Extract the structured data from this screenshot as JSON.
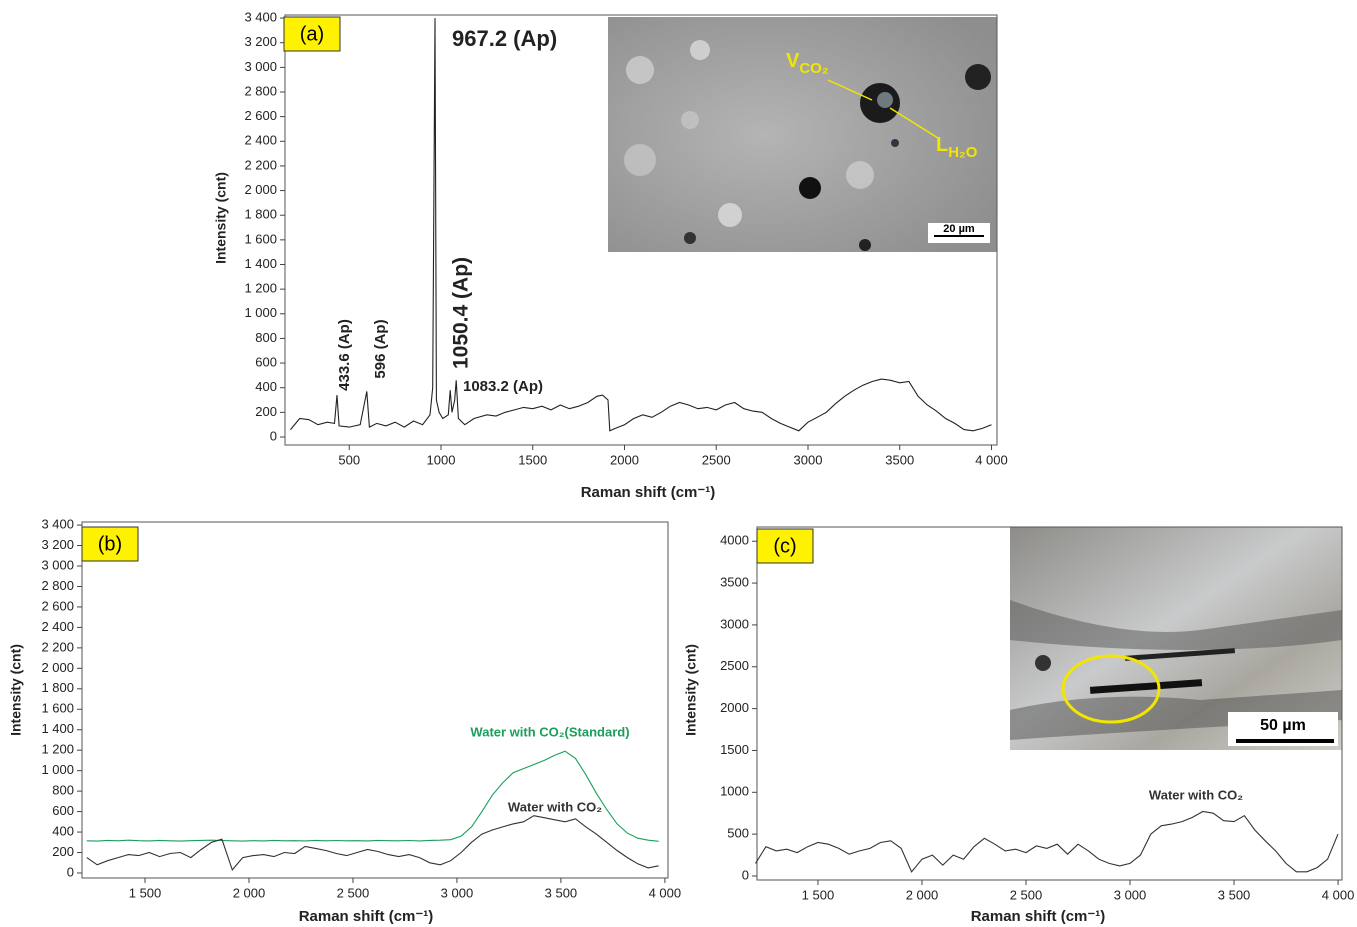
{
  "chart_data": [
    {
      "type": "line",
      "panel_label": "(a)",
      "x_label": "Raman shift (cm⁻¹)",
      "y_label": "Intensity (cnt)",
      "xlim": [
        150,
        4030
      ],
      "ylim": [
        -65,
        3425
      ],
      "xticks": [
        500,
        1000,
        1500,
        2000,
        2500,
        3000,
        3500,
        {
          "value": 4000,
          "label": "4 000"
        }
      ],
      "yticks": [
        0,
        200,
        400,
        600,
        800,
        {
          "value": 1000,
          "label": "1 000"
        },
        {
          "value": 1200,
          "label": "1 200"
        },
        {
          "value": 1400,
          "label": "1 400"
        },
        {
          "value": 1600,
          "label": "1 600"
        },
        {
          "value": 1800,
          "label": "1 800"
        },
        {
          "value": 2000,
          "label": "2 000"
        },
        {
          "value": 2200,
          "label": "2 200"
        },
        {
          "value": 2400,
          "label": "2 400"
        },
        {
          "value": 2600,
          "label": "2 600"
        },
        {
          "value": 2800,
          "label": "2 800"
        },
        {
          "value": 3000,
          "label": "3 000"
        },
        {
          "value": 3200,
          "label": "3 200"
        },
        {
          "value": 3400,
          "label": "3 400"
        }
      ],
      "x": [
        180,
        230,
        280,
        330,
        380,
        420,
        433.6,
        445,
        500,
        560,
        596,
        610,
        650,
        700,
        750,
        800,
        850,
        900,
        940,
        955,
        967.2,
        975,
        990,
        1010,
        1040,
        1050.4,
        1060,
        1075,
        1083.2,
        1095,
        1130,
        1180,
        1250,
        1300,
        1350,
        1400,
        1450,
        1500,
        1550,
        1600,
        1650,
        1700,
        1750,
        1800,
        1850,
        1880,
        1910,
        1920,
        1950,
        2000,
        2050,
        2100,
        2150,
        2200,
        2250,
        2300,
        2350,
        2400,
        2450,
        2500,
        2550,
        2600,
        2650,
        2700,
        2750,
        2800,
        2850,
        2900,
        2950,
        3000,
        3050,
        3100,
        3150,
        3200,
        3250,
        3300,
        3350,
        3400,
        3450,
        3500,
        3550,
        3600,
        3650,
        3700,
        3750,
        3800,
        3850,
        3900,
        3950,
        4000
      ],
      "series": [
        {
          "color": "#222222",
          "values": [
            60,
            150,
            140,
            100,
            120,
            110,
            340,
            90,
            80,
            100,
            370,
            80,
            110,
            90,
            120,
            80,
            130,
            100,
            180,
            400,
            3400,
            300,
            200,
            150,
            180,
            380,
            200,
            300,
            460,
            150,
            100,
            150,
            180,
            170,
            200,
            220,
            240,
            230,
            250,
            220,
            260,
            230,
            250,
            280,
            330,
            340,
            300,
            50,
            70,
            100,
            150,
            180,
            160,
            200,
            250,
            280,
            260,
            230,
            240,
            220,
            260,
            280,
            230,
            210,
            200,
            150,
            110,
            80,
            50,
            120,
            160,
            200,
            270,
            330,
            380,
            420,
            450,
            470,
            460,
            440,
            450,
            330,
            260,
            210,
            150,
            110,
            60,
            50,
            70,
            100
          ]
        }
      ],
      "annotations": [
        "967.2 (Ap)",
        "1050.4 (Ap)",
        "433.6 (Ap)",
        "596 (Ap)",
        "1083.2 (Ap)"
      ],
      "inset": {
        "labels": [
          {
            "main": "V",
            "sub": "CO₂"
          },
          {
            "main": "L",
            "sub": "H₂O"
          }
        ],
        "scale_bar": "20 µm"
      }
    },
    {
      "type": "line",
      "panel_label": "(b)",
      "x_label": "Raman shift (cm⁻¹)",
      "y_label": "Intensity (cnt)",
      "xlim": [
        1197,
        4015
      ],
      "ylim": [
        -49,
        3430
      ],
      "xticks": [
        {
          "value": 1500,
          "label": "1 500"
        },
        {
          "value": 2000,
          "label": "2 000"
        },
        {
          "value": 2500,
          "label": "2 500"
        },
        {
          "value": 3000,
          "label": "3 000"
        },
        {
          "value": 3500,
          "label": "3 500"
        },
        {
          "value": 4000,
          "label": "4 000"
        }
      ],
      "yticks": [
        0,
        200,
        400,
        600,
        800,
        {
          "value": 1000,
          "label": "1 000"
        },
        {
          "value": 1200,
          "label": "1 200"
        },
        {
          "value": 1400,
          "label": "1 400"
        },
        {
          "value": 1600,
          "label": "1 600"
        },
        {
          "value": 1800,
          "label": "1 800"
        },
        {
          "value": 2000,
          "label": "2 000"
        },
        {
          "value": 2200,
          "label": "2 200"
        },
        {
          "value": 2400,
          "label": "2 400"
        },
        {
          "value": 2600,
          "label": "2 600"
        },
        {
          "value": 2800,
          "label": "2 800"
        },
        {
          "value": 3000,
          "label": "3 000"
        },
        {
          "value": 3200,
          "label": "3 200"
        },
        {
          "value": 3400,
          "label": "3 400"
        }
      ],
      "x": [
        1220,
        1270,
        1320,
        1370,
        1420,
        1470,
        1520,
        1570,
        1620,
        1670,
        1720,
        1770,
        1820,
        1870,
        1920,
        1970,
        2020,
        2070,
        2120,
        2170,
        2220,
        2270,
        2320,
        2370,
        2420,
        2470,
        2520,
        2570,
        2620,
        2670,
        2720,
        2770,
        2820,
        2870,
        2920,
        2970,
        3020,
        3070,
        3120,
        3170,
        3220,
        3270,
        3320,
        3370,
        3420,
        3470,
        3520,
        3570,
        3620,
        3670,
        3720,
        3770,
        3820,
        3870,
        3920,
        3970
      ],
      "series": [
        {
          "name": "Water with CO₂(Standard)",
          "color": "#1a9e5a",
          "values": [
            315,
            312,
            318,
            315,
            320,
            316,
            314,
            318,
            315,
            312,
            316,
            318,
            320,
            317,
            315,
            312,
            316,
            314,
            318,
            315,
            316,
            314,
            318,
            315,
            317,
            315,
            316,
            314,
            318,
            316,
            315,
            317,
            314,
            318,
            320,
            325,
            360,
            450,
            600,
            760,
            880,
            980,
            1020,
            1060,
            1100,
            1150,
            1190,
            1120,
            960,
            780,
            620,
            480,
            390,
            340,
            320,
            310
          ]
        },
        {
          "name": "Water with CO₂",
          "color": "#333333",
          "values": [
            150,
            80,
            120,
            150,
            180,
            170,
            200,
            160,
            190,
            200,
            150,
            230,
            300,
            330,
            30,
            150,
            170,
            180,
            160,
            200,
            190,
            260,
            240,
            220,
            190,
            170,
            200,
            230,
            210,
            180,
            160,
            180,
            150,
            100,
            80,
            120,
            200,
            300,
            380,
            420,
            450,
            480,
            500,
            560,
            540,
            520,
            500,
            530,
            450,
            380,
            300,
            220,
            150,
            90,
            50,
            70
          ]
        }
      ]
    },
    {
      "type": "line",
      "panel_label": "(c)",
      "x_label": "Raman shift (cm⁻¹)",
      "y_label": "Intensity (cnt)",
      "xlim": [
        1207,
        4019
      ],
      "ylim": [
        -48,
        4170
      ],
      "xticks": [
        {
          "value": 1500,
          "label": "1 500"
        },
        {
          "value": 2000,
          "label": "2 000"
        },
        {
          "value": 2500,
          "label": "2 500"
        },
        {
          "value": 3000,
          "label": "3 000"
        },
        {
          "value": 3500,
          "label": "3 500"
        },
        {
          "value": 4000,
          "label": "4 000"
        }
      ],
      "yticks": [
        0,
        500,
        1000,
        1500,
        2000,
        2500,
        3000,
        3500,
        4000
      ],
      "x": [
        1200,
        1250,
        1300,
        1350,
        1400,
        1450,
        1500,
        1550,
        1600,
        1650,
        1700,
        1750,
        1800,
        1850,
        1900,
        1950,
        2000,
        2050,
        2100,
        2150,
        2200,
        2250,
        2300,
        2350,
        2400,
        2450,
        2500,
        2550,
        2600,
        2650,
        2700,
        2750,
        2800,
        2850,
        2900,
        2950,
        3000,
        3050,
        3100,
        3150,
        3200,
        3250,
        3300,
        3350,
        3400,
        3450,
        3500,
        3550,
        3600,
        3650,
        3700,
        3750,
        3800,
        3850,
        3900,
        3950,
        4000
      ],
      "series": [
        {
          "name": "Water with CO₂",
          "color": "#333333",
          "values": [
            150,
            350,
            300,
            320,
            280,
            350,
            400,
            380,
            330,
            260,
            300,
            330,
            400,
            420,
            330,
            50,
            200,
            250,
            130,
            250,
            200,
            350,
            450,
            380,
            300,
            320,
            280,
            360,
            330,
            380,
            260,
            380,
            300,
            200,
            150,
            120,
            150,
            250,
            500,
            600,
            620,
            650,
            700,
            770,
            750,
            660,
            650,
            720,
            550,
            420,
            300,
            150,
            50,
            50,
            100,
            200,
            500
          ]
        }
      ],
      "inset": {
        "scale_bar": "50 µm"
      }
    }
  ]
}
